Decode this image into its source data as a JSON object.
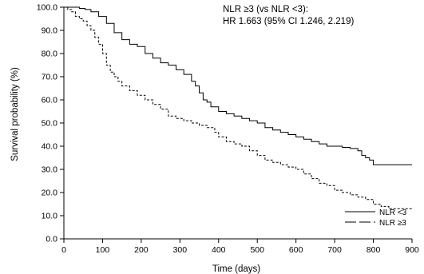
{
  "chart_data": {
    "type": "line",
    "title": "",
    "xlabel": "Time (days)",
    "ylabel": "Survival probability (%)",
    "xlim": [
      0,
      900
    ],
    "ylim": [
      0,
      100
    ],
    "x_ticks": [
      0,
      100,
      200,
      300,
      400,
      500,
      600,
      700,
      800,
      900
    ],
    "y_ticks": [
      0,
      10,
      20,
      30,
      40,
      50,
      60,
      70,
      80,
      90,
      100
    ],
    "x_tick_labels": [
      "0",
      "100",
      "200",
      "300",
      "400",
      "500",
      "600",
      "700",
      "800",
      "900"
    ],
    "y_tick_labels": [
      "0.0",
      "10.0",
      "20.0",
      "30.0",
      "40.0",
      "50.0",
      "60.0",
      "70.0",
      "80.0",
      "90.0",
      "100.0"
    ],
    "grid": false,
    "legend_position": "bottom-right",
    "annotations": [
      "NLR ≥3 (vs NLR <3):",
      "HR 1.663 (95% CI 1.246, 2.219)"
    ],
    "series": [
      {
        "name": "NLR <3",
        "line_style": "solid",
        "color": "#000000",
        "x": [
          0,
          20,
          40,
          55,
          70,
          90,
          110,
          130,
          150,
          170,
          190,
          210,
          230,
          250,
          270,
          290,
          310,
          330,
          340,
          350,
          360,
          370,
          380,
          400,
          420,
          440,
          460,
          480,
          500,
          520,
          540,
          560,
          580,
          600,
          620,
          640,
          660,
          680,
          700,
          720,
          740,
          760,
          770,
          780,
          790,
          800,
          820,
          850,
          880,
          900
        ],
        "y": [
          100,
          100,
          99.5,
          99,
          98,
          96,
          93,
          89,
          86,
          84,
          83,
          80,
          78,
          76,
          75,
          73,
          71,
          68,
          66,
          63,
          60,
          59,
          57,
          55,
          54,
          53,
          52,
          51,
          50,
          48,
          47,
          46,
          45,
          44,
          43,
          42,
          41,
          40,
          40,
          39.5,
          39,
          38,
          36,
          35,
          34,
          32,
          32,
          32,
          32,
          32
        ]
      },
      {
        "name": "NLR ≥3",
        "line_style": "dashed",
        "color": "#000000",
        "x": [
          0,
          10,
          20,
          30,
          40,
          50,
          60,
          70,
          80,
          90,
          100,
          110,
          120,
          130,
          140,
          150,
          170,
          190,
          210,
          230,
          250,
          270,
          290,
          310,
          330,
          350,
          370,
          390,
          400,
          420,
          440,
          460,
          480,
          500,
          520,
          540,
          560,
          580,
          600,
          620,
          640,
          660,
          680,
          700,
          720,
          740,
          760,
          780,
          800,
          820,
          840,
          860,
          900
        ],
        "y": [
          100,
          99,
          98,
          96,
          95,
          94,
          92,
          90,
          87,
          84,
          80,
          75,
          72,
          70,
          68,
          66,
          64,
          62,
          60,
          58,
          56,
          53,
          52,
          51,
          50,
          49,
          48,
          46,
          44,
          42,
          41,
          40,
          38,
          36,
          34,
          33,
          32,
          31,
          30,
          28,
          26,
          24,
          23,
          21,
          20,
          19,
          18,
          17,
          15,
          14,
          13,
          13,
          13
        ]
      }
    ]
  }
}
